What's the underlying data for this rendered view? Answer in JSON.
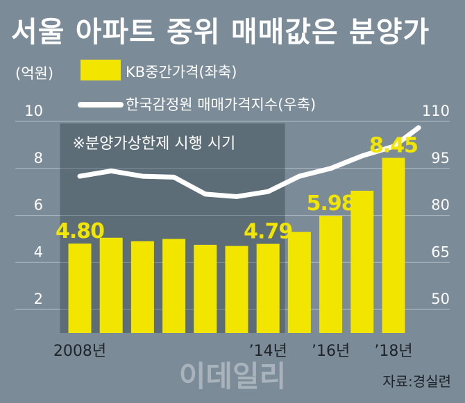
{
  "title": "서울 아파트 중위 매매값은 분양가",
  "source": "자료:경실련",
  "watermark": "이데일리",
  "colors": {
    "background": "#7b8b98",
    "shade": "#5d6d78",
    "bar": "#f2e600",
    "line": "#ffffff",
    "label_highlight": "#f2e600",
    "text": "#ffffff",
    "grid": "#a9b5bf"
  },
  "chart_data": {
    "type": "bar",
    "title": "서울 아파트 중위 매매값은 분양가",
    "left_axis": {
      "unit": "(억원)",
      "ylim": [
        1,
        10
      ],
      "ticks": [
        "2",
        "4",
        "6",
        "8",
        "10"
      ]
    },
    "right_axis": {
      "ylim": [
        42.5,
        110
      ],
      "ticks": [
        "50",
        "65",
        "80",
        "95",
        "110"
      ]
    },
    "x_tick_labels": [
      {
        "index": 0,
        "label": "2008년"
      },
      {
        "index": 6,
        "label": "’14년"
      },
      {
        "index": 8,
        "label": "’16년"
      },
      {
        "index": 10,
        "label": "’18년"
      }
    ],
    "series": [
      {
        "name": "KB중간가격(좌축)",
        "type": "bar",
        "axis": "left",
        "x": [
          2008,
          2009,
          2010,
          2011,
          2012,
          2013,
          2014,
          2015,
          2016,
          2017,
          2018
        ],
        "values": [
          4.8,
          5.05,
          4.9,
          5.0,
          4.75,
          4.7,
          4.79,
          5.3,
          5.98,
          7.05,
          8.45
        ]
      },
      {
        "name": "한국감정원 매매가격지수(우축)",
        "type": "line",
        "axis": "right",
        "values": [
          {
            "x": 0.0,
            "y": 92.5
          },
          {
            "x": 1.0,
            "y": 94.2
          },
          {
            "x": 2.0,
            "y": 92.5
          },
          {
            "x": 3.0,
            "y": 92.2
          },
          {
            "x": 4.0,
            "y": 86.8
          },
          {
            "x": 5.0,
            "y": 86.0
          },
          {
            "x": 6.0,
            "y": 87.6
          },
          {
            "x": 7.0,
            "y": 92.5
          },
          {
            "x": 8.0,
            "y": 95.0
          },
          {
            "x": 9.0,
            "y": 99.0
          },
          {
            "x": 10.0,
            "y": 102.0
          },
          {
            "x": 10.8,
            "y": 108.0
          }
        ]
      }
    ],
    "data_labels": [
      {
        "index": 0,
        "text": "4.80"
      },
      {
        "index": 6,
        "text": "4.79"
      },
      {
        "index": 8,
        "text": "5.98"
      },
      {
        "index": 10,
        "text": "8.45"
      }
    ],
    "shaded_period": {
      "from_index": 0,
      "to_index": 6,
      "label": "※분양가상한제 시행 시기"
    },
    "grid": true
  }
}
